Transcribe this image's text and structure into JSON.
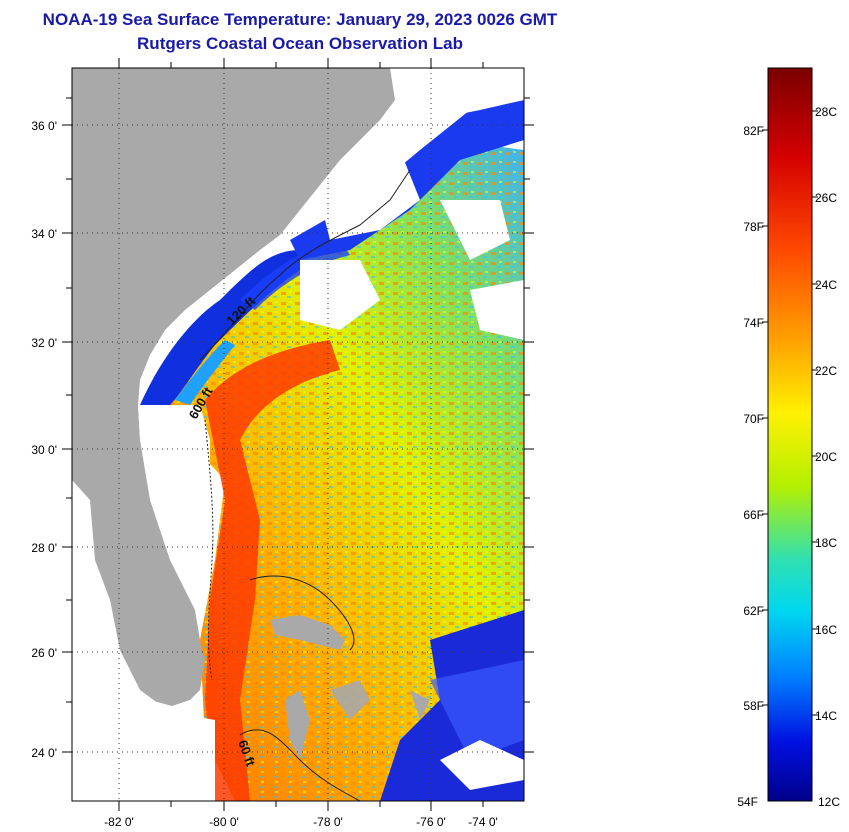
{
  "header": {
    "title": "NOAA-19 Sea Surface Temperature:  January 29, 2023 0026 GMT",
    "subtitle": "Rutgers Coastal Ocean Observation Lab"
  },
  "map": {
    "lat_labels": [
      "36 0'",
      "34 0'",
      "32 0'",
      "30 0'",
      "28 0'",
      "26 0'",
      "24 0'"
    ],
    "lon_labels": [
      "-82 0'",
      "-80 0'",
      "-78 0'",
      "-76 0'",
      "-74 0'"
    ],
    "contour_labels": [
      "120 ft",
      "600 ft",
      "60 ft"
    ],
    "land_color": "#a9a9a9",
    "cloud_color": "#ffffff"
  },
  "colorbar": {
    "fahrenheit_labels": [
      "82F",
      "78F",
      "74F",
      "70F",
      "66F",
      "62F",
      "58F",
      "54F"
    ],
    "celsius_labels": [
      "28C",
      "26C",
      "24C",
      "22C",
      "20C",
      "18C",
      "16C",
      "14C",
      "12C"
    ]
  }
}
